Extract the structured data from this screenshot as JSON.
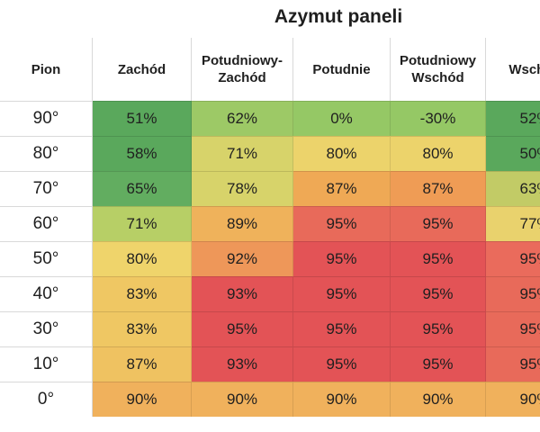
{
  "chart_data": {
    "type": "heatmap",
    "title": "Azymut paneli",
    "corner_label": "Pion",
    "columns": [
      "Zachód",
      "Potudniowy-\nZachód",
      "Potudnie",
      "Potudniowy\nWschód",
      "Wschód"
    ],
    "rows": [
      "90°",
      "80°",
      "70°",
      "60°",
      "50°",
      "40°",
      "30°",
      "10°",
      "0°"
    ],
    "values": [
      [
        51,
        62,
        0,
        -30,
        52
      ],
      [
        58,
        71,
        80,
        80,
        50
      ],
      [
        65,
        78,
        87,
        87,
        63
      ],
      [
        71,
        89,
        95,
        95,
        77
      ],
      [
        80,
        92,
        95,
        95,
        95
      ],
      [
        83,
        93,
        95,
        95,
        95
      ],
      [
        83,
        95,
        95,
        95,
        95
      ],
      [
        87,
        93,
        95,
        95,
        95
      ],
      [
        90,
        90,
        90,
        90,
        90
      ]
    ],
    "value_suffix": "%",
    "colors": [
      [
        "#5aa85c",
        "#9dc966",
        "#95c865",
        "#95c865",
        "#5aa85c"
      ],
      [
        "#5aa85c",
        "#d7d36a",
        "#ecd36b",
        "#ecd36b",
        "#5aa85c"
      ],
      [
        "#62ad60",
        "#d7d36a",
        "#efa955",
        "#ef9c55",
        "#c2cb66"
      ],
      [
        "#b7cf66",
        "#efb25b",
        "#e86a5a",
        "#e86a5a",
        "#e9d26d"
      ],
      [
        "#efd46b",
        "#ee9759",
        "#e35356",
        "#e35356",
        "#ea6b5c"
      ],
      [
        "#efc763",
        "#e35356",
        "#e35356",
        "#e35356",
        "#e86a5a"
      ],
      [
        "#efc763",
        "#e35356",
        "#e35356",
        "#e35356",
        "#e86a5a"
      ],
      [
        "#efc261",
        "#e35356",
        "#e35356",
        "#e35356",
        "#e86a5a"
      ],
      [
        "#f0b15c",
        "#f0b15c",
        "#f0b15c",
        "#f0b15c",
        "#f0b15c"
      ]
    ]
  }
}
